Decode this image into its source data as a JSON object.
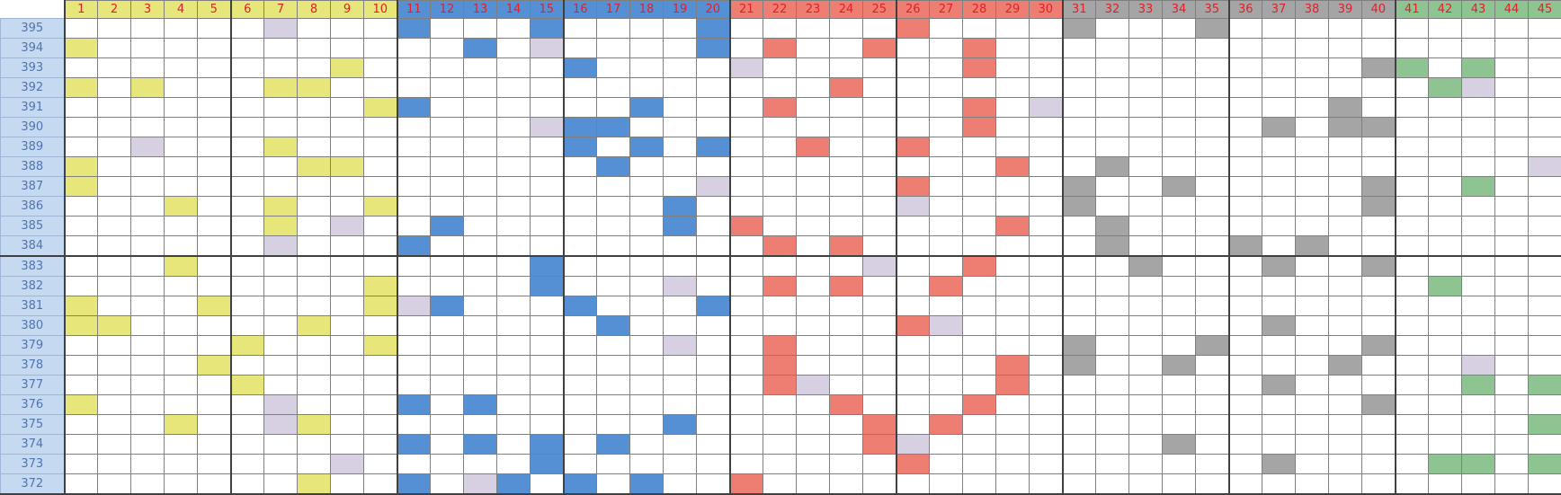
{
  "columns": [
    "1",
    "2",
    "3",
    "4",
    "5",
    "6",
    "7",
    "8",
    "9",
    "10",
    "11",
    "12",
    "13",
    "14",
    "15",
    "16",
    "17",
    "18",
    "19",
    "20",
    "21",
    "22",
    "23",
    "24",
    "25",
    "26",
    "27",
    "28",
    "29",
    "30",
    "31",
    "32",
    "33",
    "34",
    "35",
    "36",
    "37",
    "38",
    "39",
    "40",
    "41",
    "42",
    "43",
    "44",
    "45"
  ],
  "groups": [
    {
      "range": [
        1,
        10
      ],
      "color": "#e6e67a"
    },
    {
      "range": [
        11,
        20
      ],
      "color": "#5590d5"
    },
    {
      "range": [
        21,
        30
      ],
      "color": "#ee7d72"
    },
    {
      "range": [
        31,
        40
      ],
      "color": "#a5a5a5"
    },
    {
      "range": [
        41,
        45
      ],
      "color": "#8dc492"
    }
  ],
  "colors": {
    "mark": "#d6d0e2",
    "header_text": "#e0202a",
    "label_bg": "#c5d9f1",
    "label_text": "#4f74b3"
  },
  "rows": [
    {
      "period": "395",
      "hits": [
        11,
        15,
        20,
        26,
        31,
        35
      ],
      "marks": [
        7
      ]
    },
    {
      "period": "394",
      "hits": [
        1,
        13,
        20,
        22,
        25,
        28
      ],
      "marks": [
        15
      ]
    },
    {
      "period": "393",
      "hits": [
        9,
        16,
        28,
        40,
        41,
        43
      ],
      "marks": [
        21
      ]
    },
    {
      "period": "392",
      "hits": [
        1,
        3,
        7,
        8,
        24,
        42
      ],
      "marks": [
        43
      ]
    },
    {
      "period": "391",
      "hits": [
        10,
        11,
        18,
        22,
        28,
        39
      ],
      "marks": [
        30
      ]
    },
    {
      "period": "390",
      "hits": [
        16,
        17,
        28,
        37,
        39,
        40
      ],
      "marks": [
        15
      ]
    },
    {
      "period": "389",
      "hits": [
        7,
        16,
        18,
        20,
        23,
        26
      ],
      "marks": [
        3
      ]
    },
    {
      "period": "388",
      "hits": [
        1,
        8,
        9,
        17,
        29,
        32
      ],
      "marks": [
        45
      ]
    },
    {
      "period": "387",
      "hits": [
        1,
        26,
        31,
        34,
        40,
        43
      ],
      "marks": [
        20
      ]
    },
    {
      "period": "386",
      "hits": [
        4,
        7,
        10,
        19,
        31,
        40
      ],
      "marks": [
        26
      ]
    },
    {
      "period": "385",
      "hits": [
        7,
        12,
        19,
        21,
        29,
        32
      ],
      "marks": [
        9
      ]
    },
    {
      "period": "384",
      "hits": [
        11,
        22,
        24,
        32,
        36,
        38
      ],
      "marks": [
        7
      ]
    },
    {
      "period": "383",
      "hits": [
        4,
        15,
        28,
        33,
        37,
        40
      ],
      "marks": [
        25
      ]
    },
    {
      "period": "382",
      "hits": [
        10,
        15,
        22,
        24,
        27,
        42
      ],
      "marks": [
        19
      ]
    },
    {
      "period": "381",
      "hits": [
        1,
        5,
        10,
        12,
        16,
        20
      ],
      "marks": [
        11
      ]
    },
    {
      "period": "380",
      "hits": [
        1,
        2,
        8,
        17,
        26,
        37
      ],
      "marks": [
        27
      ]
    },
    {
      "period": "379",
      "hits": [
        6,
        10,
        22,
        31,
        35,
        40
      ],
      "marks": [
        19
      ]
    },
    {
      "period": "378",
      "hits": [
        5,
        22,
        29,
        31,
        34,
        39
      ],
      "marks": [
        43
      ]
    },
    {
      "period": "377",
      "hits": [
        6,
        22,
        29,
        37,
        43,
        45
      ],
      "marks": [
        23
      ]
    },
    {
      "period": "376",
      "hits": [
        1,
        11,
        13,
        24,
        28,
        40
      ],
      "marks": [
        7
      ]
    },
    {
      "period": "375",
      "hits": [
        4,
        8,
        19,
        25,
        27,
        45
      ],
      "marks": [
        7
      ]
    },
    {
      "period": "374",
      "hits": [
        11,
        13,
        15,
        17,
        25,
        34
      ],
      "marks": [
        26
      ]
    },
    {
      "period": "373",
      "hits": [
        15,
        26,
        37,
        42,
        43,
        45
      ],
      "marks": [
        9
      ]
    },
    {
      "period": "372",
      "hits": [
        8,
        11,
        14,
        16,
        18,
        21
      ],
      "marks": [
        13
      ]
    }
  ]
}
